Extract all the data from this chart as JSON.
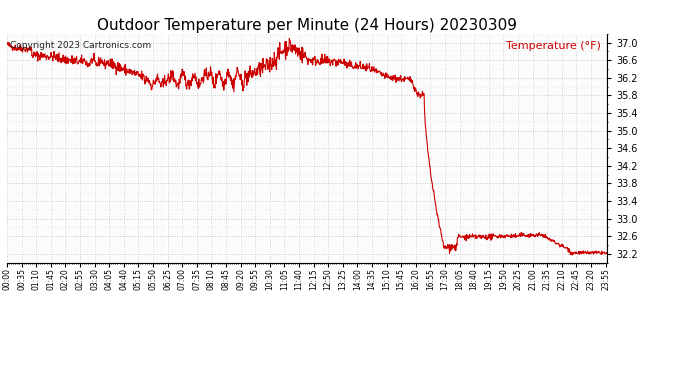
{
  "title": "Outdoor Temperature per Minute (24 Hours) 20230309",
  "ylabel": "Temperature (°F)",
  "copyright_text": "Copyright 2023 Cartronics.com",
  "line_color": "#cc0000",
  "bg_color": "#ffffff",
  "grid_color": "#bbbbbb",
  "title_color": "#000000",
  "legend_color": "#cc0000",
  "ylim": [
    32.0,
    37.2
  ],
  "yticks": [
    32.2,
    32.6,
    33.0,
    33.4,
    33.8,
    34.2,
    34.6,
    35.0,
    35.4,
    35.8,
    36.2,
    36.6,
    37.0
  ],
  "num_minutes": 1440,
  "copyright_fontsize": 6.5,
  "title_fontsize": 11,
  "xtick_step": 35
}
